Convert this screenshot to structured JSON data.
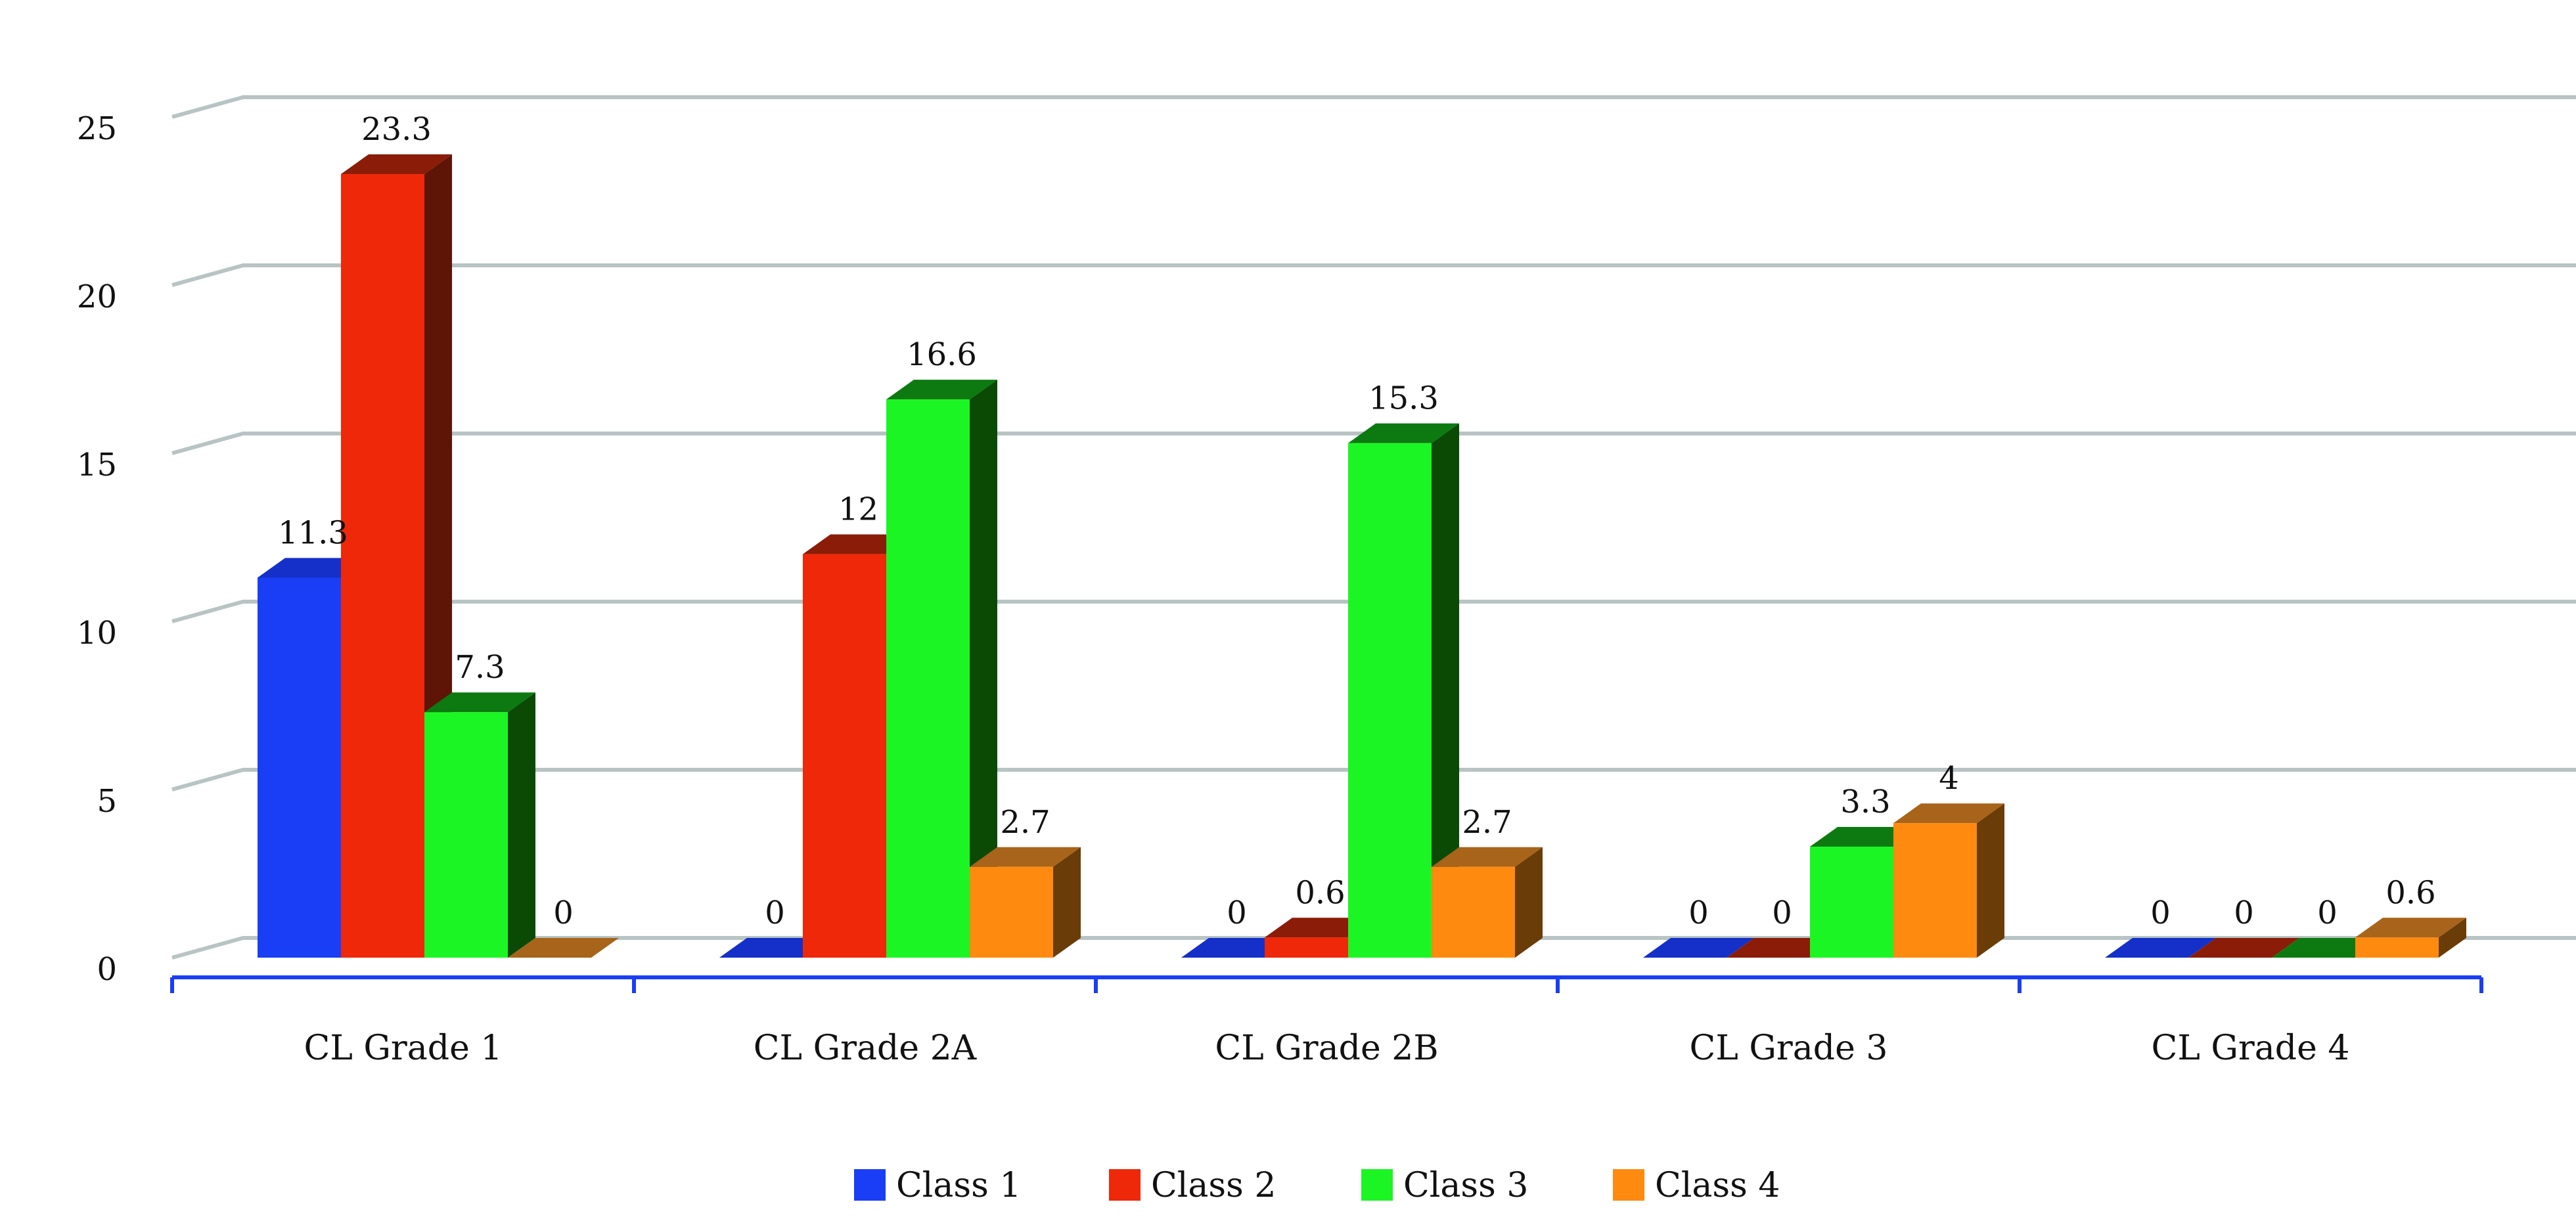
{
  "chart_data": {
    "type": "bar",
    "style": "3d-clustered-column",
    "title": "",
    "xlabel": "",
    "ylabel": "",
    "ylim": [
      0,
      25
    ],
    "y_ticks": [
      "0",
      "5",
      "10",
      "15",
      "20",
      "25"
    ],
    "grid": true,
    "legend_position": "bottom",
    "categories": [
      "CL Grade 1",
      "CL Grade 2A",
      "CL Grade 2B",
      "CL Grade 3",
      "CL Grade 4"
    ],
    "series": [
      {
        "name": "Class 1",
        "values": [
          11.3,
          0,
          0,
          0,
          0
        ],
        "labels": [
          "11.3",
          "0",
          "0",
          "0",
          "0"
        ],
        "color": "#1a3ef5",
        "side": "#10279a",
        "top": "#1530c8"
      },
      {
        "name": "Class 2",
        "values": [
          23.3,
          12,
          0.6,
          0,
          0
        ],
        "labels": [
          "23.3",
          "12",
          "0.6",
          "0",
          "0"
        ],
        "color": "#ee2808",
        "side": "#5e1505",
        "top": "#8a1c08"
      },
      {
        "name": "Class 3",
        "values": [
          7.3,
          16.6,
          15.3,
          3.3,
          0
        ],
        "labels": [
          "7.3",
          "16.6",
          "15.3",
          "3.3",
          "0"
        ],
        "color": "#1cf524",
        "side": "#0a4a05",
        "top": "#0c7a10"
      },
      {
        "name": "Class 4",
        "values": [
          0,
          2.7,
          2.7,
          4,
          0.6
        ],
        "labels": [
          "0",
          "2.7",
          "2.7",
          "4",
          "0.6"
        ],
        "color": "#ff8a10",
        "side": "#6a3c08",
        "top": "#a8641a"
      }
    ]
  },
  "colors": {
    "gridline": "#b8c4c4",
    "axis": "#1a3ef5"
  }
}
